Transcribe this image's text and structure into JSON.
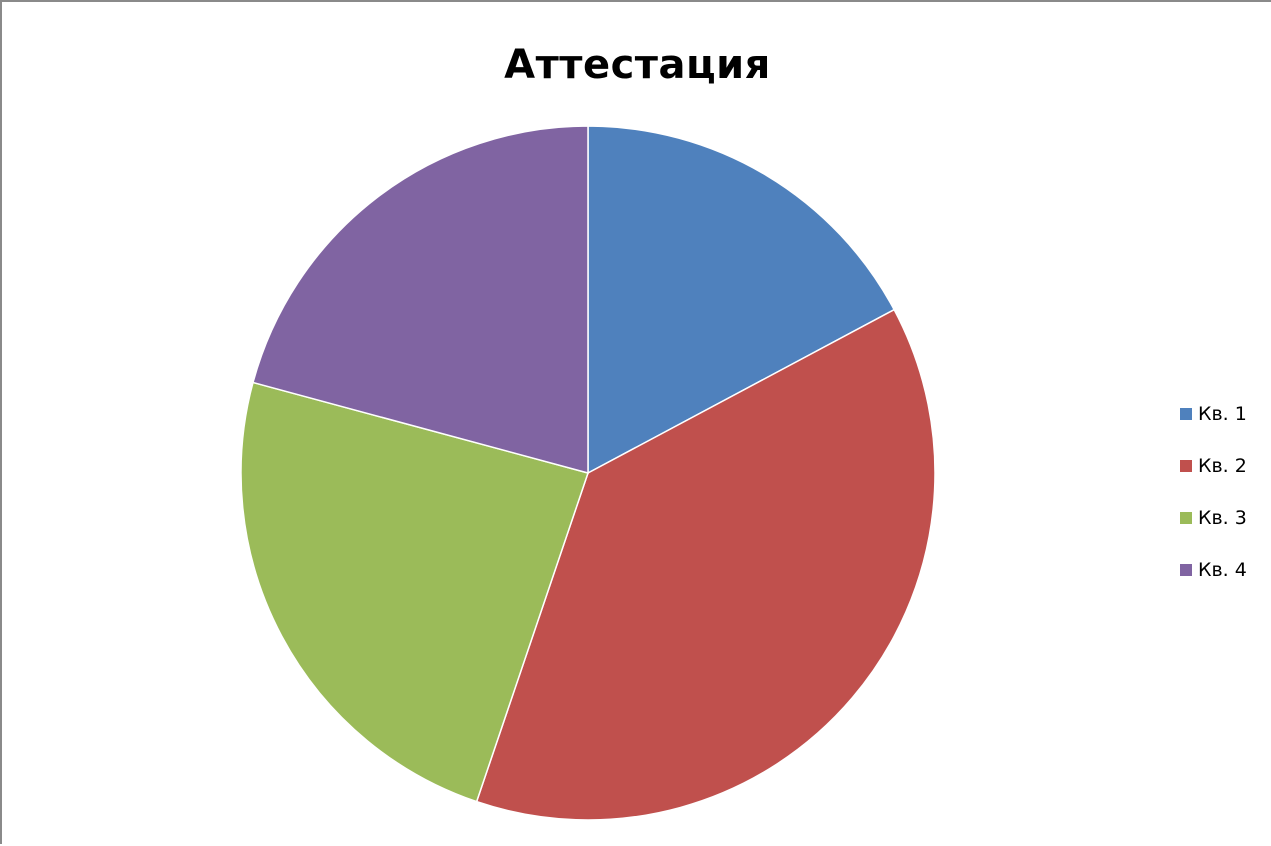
{
  "chart_data": {
    "type": "pie",
    "title": "Аттестация",
    "categories": [
      "Кв. 1",
      "Кв. 2",
      "Кв. 3",
      "Кв. 4"
    ],
    "values": [
      17.2,
      38.0,
      24.0,
      20.8
    ],
    "colors": [
      "#4f81bd",
      "#c0504d",
      "#9bbb59",
      "#8064a2"
    ],
    "start_angle": "12 o'clock",
    "direction": "clockwise",
    "legend_position": "right"
  }
}
